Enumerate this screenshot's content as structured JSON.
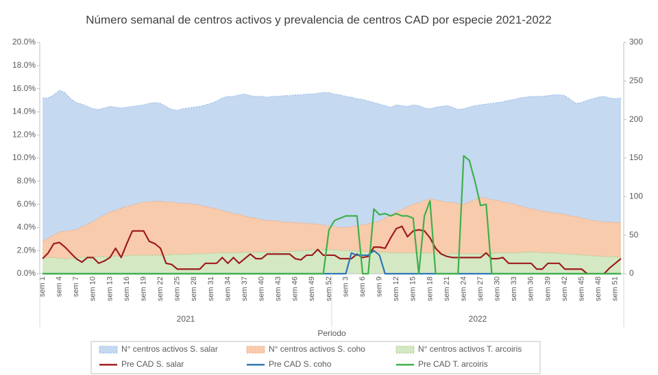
{
  "chart_data": {
    "type": "combo",
    "title": "Número semanal de centros activos y prevalencia de centros CAD por especie 2021-2022",
    "x_label": "Periodo",
    "x_groups": [
      {
        "label": "2021",
        "count": 52
      },
      {
        "label": "2022",
        "count": 52
      }
    ],
    "categories": [
      "sem 1",
      null,
      null,
      "sem 4",
      null,
      null,
      "sem 7",
      null,
      null,
      "sem 10",
      null,
      null,
      "sem 13",
      null,
      null,
      "sem 16",
      null,
      null,
      "sem 19",
      null,
      null,
      "sem 22",
      null,
      null,
      "sem 25",
      null,
      null,
      "sem 28",
      null,
      null,
      "sem 31",
      null,
      null,
      "sem 34",
      null,
      null,
      "sem 37",
      null,
      null,
      "sem 40",
      null,
      null,
      "sem 43",
      null,
      null,
      "sem 46",
      null,
      null,
      "sem 49",
      null,
      null,
      "sem 52",
      null,
      null,
      "sem 3",
      null,
      null,
      "sem 6",
      null,
      null,
      "sem 9",
      null,
      null,
      "sem 12",
      null,
      null,
      "sem 15",
      null,
      null,
      "sem 18",
      null,
      null,
      "sem 21",
      null,
      null,
      "sem 24",
      null,
      null,
      "sem 27",
      null,
      null,
      "sem 30",
      null,
      null,
      "sem 33",
      null,
      null,
      "sem 36",
      null,
      null,
      "sem 39",
      null,
      null,
      "sem 42",
      null,
      null,
      "sem 45",
      null,
      null,
      "sem 48",
      null,
      null,
      "sem 51",
      null
    ],
    "stacked": true,
    "ylim": [
      0,
      20
    ],
    "yticks": [
      {
        "value": 0,
        "label": "0.0%"
      },
      {
        "value": 2,
        "label": "2.0%"
      },
      {
        "value": 4,
        "label": "4.0%"
      },
      {
        "value": 6,
        "label": "6.0%"
      },
      {
        "value": 8,
        "label": "8.0%"
      },
      {
        "value": 10,
        "label": "10.0%"
      },
      {
        "value": 12,
        "label": "12.0%"
      },
      {
        "value": 14,
        "label": "14.0%"
      },
      {
        "value": 16,
        "label": "16.0%"
      },
      {
        "value": 18,
        "label": "18.0%"
      },
      {
        "value": 20,
        "label": "20.0%"
      }
    ],
    "y2lim": [
      0,
      300
    ],
    "y2ticks": [
      0,
      50,
      100,
      150,
      200,
      250,
      300
    ],
    "grid": false,
    "legend": "bottom",
    "series": [
      {
        "name": "N° centros activos S. salar",
        "type": "area",
        "axis": "y2",
        "color": "#c5d9f1",
        "edge": "#8eb4e3",
        "values": [
          186,
          182,
          182,
          184,
          180,
          171,
          165,
          159,
          153,
          146,
          141,
          139,
          137,
          134,
          130,
          129,
          128,
          127,
          126,
          128,
          128,
          127,
          124,
          120,
          120,
          123,
          124,
          126,
          128,
          132,
          135,
          140,
          146,
          150,
          152,
          155,
          158,
          158,
          158,
          160,
          160,
          161,
          162,
          164,
          164,
          166,
          166,
          168,
          168,
          170,
          172,
          173,
          172,
          172,
          170,
          168,
          165,
          163,
          159,
          156,
          152,
          146,
          140,
          139,
          135,
          130,
          129,
          126,
          120,
          117,
          120,
          123,
          125,
          124,
          122,
          124,
          123,
          122,
          120,
          122,
          125,
          127,
          130,
          133,
          136,
          140,
          143,
          146,
          147,
          149,
          151,
          153,
          154,
          154,
          151,
          147,
          150,
          154,
          158,
          161,
          163,
          161,
          161,
          161
        ]
      },
      {
        "name": "N° centros activos S. coho",
        "type": "area",
        "axis": "y2",
        "color": "#f8cbad",
        "edge": "#e9a47a",
        "values": [
          22,
          25,
          29,
          34,
          36,
          36,
          36,
          40,
          42,
          46,
          50,
          54,
          58,
          59,
          62,
          64,
          65,
          67,
          69,
          69,
          70,
          70,
          69,
          68,
          67,
          66,
          66,
          64,
          63,
          61,
          60,
          57,
          55,
          53,
          51,
          50,
          47,
          45,
          44,
          42,
          41,
          41,
          40,
          38,
          38,
          37,
          36,
          35,
          34,
          33,
          32,
          31,
          30,
          30,
          30,
          31,
          33,
          34,
          37,
          38,
          40,
          44,
          49,
          53,
          56,
          60,
          63,
          65,
          68,
          70,
          70,
          68,
          67,
          66,
          65,
          64,
          67,
          70,
          73,
          72,
          70,
          68,
          66,
          65,
          63,
          61,
          58,
          56,
          55,
          54,
          53,
          52,
          52,
          51,
          50,
          49,
          48,
          47,
          46,
          45,
          45,
          45,
          44,
          46
        ]
      },
      {
        "name": "N° centros activos T. arcoiris",
        "type": "area",
        "axis": "y2",
        "color": "#d5e8c4",
        "edge": "#9cc57e",
        "values": [
          20,
          21,
          21,
          20,
          19,
          20,
          21,
          21,
          22,
          22,
          22,
          22,
          22,
          23,
          23,
          23,
          24,
          24,
          24,
          24,
          24,
          24,
          24,
          25,
          25,
          25,
          25,
          26,
          26,
          26,
          26,
          27,
          27,
          27,
          27,
          27,
          28,
          28,
          28,
          28,
          28,
          28,
          28,
          29,
          29,
          29,
          30,
          30,
          31,
          31,
          31,
          31,
          31,
          30,
          30,
          30,
          29,
          29,
          28,
          28,
          28,
          28,
          27,
          27,
          27,
          27,
          27,
          27,
          27,
          27,
          26,
          26,
          26,
          26,
          26,
          26,
          26,
          26,
          26,
          26,
          26,
          27,
          27,
          27,
          27,
          27,
          28,
          28,
          28,
          27,
          27,
          27,
          26,
          26,
          25,
          25,
          24,
          24,
          23,
          23,
          22,
          22,
          22,
          21
        ]
      },
      {
        "name": "Pre CAD S. salar",
        "type": "line",
        "color": "#9e1b1b",
        "values": [
          1.3,
          1.8,
          2.6,
          2.7,
          2.3,
          1.8,
          1.3,
          1.0,
          1.4,
          1.4,
          0.9,
          1.1,
          1.4,
          2.2,
          1.4,
          2.6,
          3.7,
          3.7,
          3.7,
          2.8,
          2.6,
          2.2,
          0.9,
          0.8,
          0.4,
          0.4,
          0.4,
          0.4,
          0.4,
          0.9,
          0.9,
          0.9,
          1.4,
          0.9,
          1.4,
          0.9,
          1.3,
          1.7,
          1.3,
          1.3,
          1.7,
          1.7,
          1.7,
          1.7,
          1.7,
          1.3,
          1.2,
          1.6,
          1.6,
          2.1,
          1.6,
          1.6,
          1.6,
          1.3,
          1.3,
          1.3,
          1.7,
          1.4,
          1.5,
          2.3,
          2.3,
          2.2,
          3.1,
          3.9,
          4.1,
          3.2,
          3.7,
          3.8,
          3.7,
          3.1,
          2.2,
          1.7,
          1.5,
          1.4,
          1.4,
          1.4,
          1.4,
          1.4,
          1.4,
          1.8,
          1.3,
          1.3,
          1.4,
          0.9,
          0.9,
          0.9,
          0.9,
          0.9,
          0.4,
          0.4,
          0.9,
          0.9,
          0.9,
          0.4,
          0.4,
          0.4,
          0.4,
          0.0,
          null,
          null,
          0.0,
          0.5,
          0.9,
          1.3
        ]
      },
      {
        "name": "Pre CAD S. coho",
        "type": "line",
        "color": "#2e75b6",
        "values": [
          0,
          0,
          0,
          0,
          0,
          0,
          0,
          0,
          0,
          0,
          0,
          0,
          0,
          0,
          0,
          0,
          0,
          0,
          0,
          0,
          0,
          0,
          0,
          0,
          0,
          0,
          0,
          0,
          0,
          0,
          0,
          0,
          0,
          0,
          0,
          0,
          0,
          0,
          0,
          0,
          0,
          0,
          0,
          0,
          0,
          0,
          0,
          0,
          0,
          0,
          0,
          0,
          0,
          0,
          0,
          1.8,
          1.6,
          1.6,
          1.6,
          2.0,
          1.6,
          0,
          0,
          0,
          0,
          0,
          0,
          0,
          0,
          0,
          0,
          0,
          0,
          0,
          0,
          0,
          0,
          0,
          0,
          0,
          0,
          0,
          0,
          0,
          0,
          0,
          0,
          0,
          0,
          0,
          0,
          0,
          0,
          0,
          0,
          0,
          0,
          0,
          0,
          0,
          0,
          0,
          0,
          0
        ]
      },
      {
        "name": "Pre CAD T. arcoiris",
        "type": "line",
        "color": "#3cb04a",
        "values": [
          0,
          0,
          0,
          0,
          0,
          0,
          0,
          0,
          0,
          0,
          0,
          0,
          0,
          0,
          0,
          0,
          0,
          0,
          0,
          0,
          0,
          0,
          0,
          0,
          0,
          0,
          0,
          0,
          0,
          0,
          0,
          0,
          0,
          0,
          0,
          0,
          0,
          0,
          0,
          0,
          0,
          0,
          0,
          0,
          0,
          0,
          0,
          0,
          0,
          0,
          0,
          3.8,
          4.6,
          4.8,
          5.0,
          5.0,
          5.0,
          0,
          0,
          5.6,
          5.1,
          5.2,
          5.0,
          5.2,
          5.0,
          5.0,
          4.8,
          0,
          5.0,
          6.3,
          0,
          0,
          0,
          0,
          0,
          10.2,
          9.8,
          8.0,
          5.9,
          6.0,
          0,
          0,
          0,
          0,
          0,
          0,
          0,
          0,
          0,
          0,
          0,
          0,
          0,
          0,
          0,
          0,
          0,
          0,
          0,
          0,
          0,
          0,
          0,
          0
        ]
      }
    ]
  }
}
